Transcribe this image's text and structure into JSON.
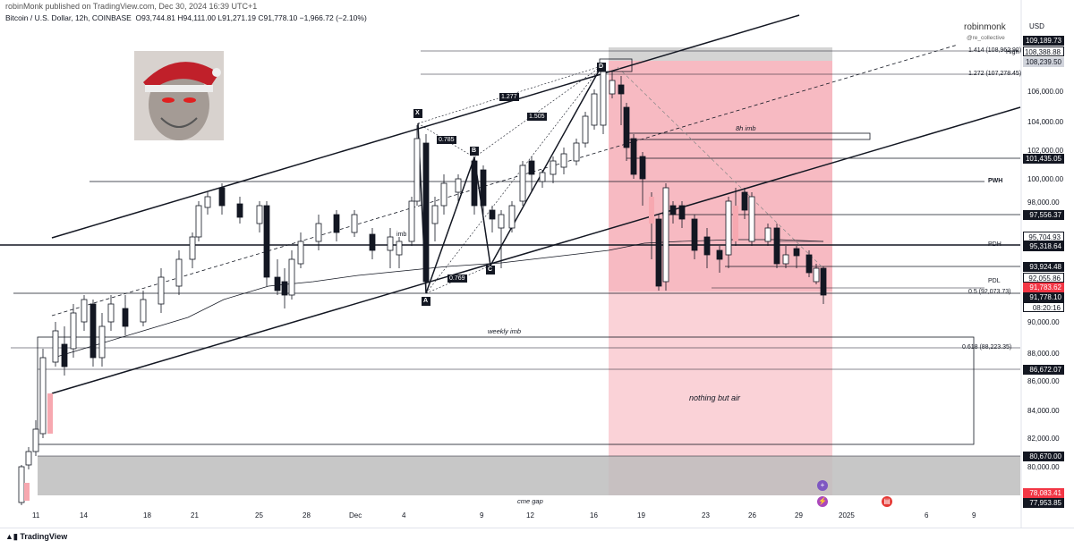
{
  "header": {
    "publisher": "robinMonk published on TradingView.com, Dec 30, 2024 16:39 UTC+1",
    "symbol": "Bitcoin / U.S. Dollar, 12h, COINBASE",
    "open": "O93,744.81",
    "high": "H94,111.00",
    "low": "L91,271.19",
    "close": "C91,778.10",
    "change": "−1,966.72 (−2.10%)"
  },
  "brand": {
    "name": "robinmonk",
    "collective": "@re_collective",
    "currency": "USD"
  },
  "price_axis": [
    "106,000.00",
    "104,000.00",
    "102,000.00",
    "100,000.00",
    "98,000.00",
    "90,000.00",
    "88,000.00",
    "86,000.00",
    "84,000.00",
    "82,000.00",
    "80,000.00"
  ],
  "price_tags": {
    "t109": "109,189.73",
    "t108a": "108,388.88",
    "t108b": "108,239.50",
    "high_label": "High",
    "t101": "101,435.05",
    "t97": "97,556.37",
    "t95a": "95,704.93",
    "t95b": "95,318.64",
    "t93": "93,924.48",
    "t92": "92,055.86",
    "t91a": "91,783.62",
    "t91b": "91,778.10",
    "countdown": "08:20:16",
    "t86": "86,672.07",
    "t80": "80,670.00",
    "t78": "78,083.41",
    "t77": "77,953.85"
  },
  "dates": [
    "11",
    "14",
    "18",
    "21",
    "25",
    "28",
    "Dec",
    "4",
    "9",
    "12",
    "16",
    "19",
    "23",
    "26",
    "29",
    "2025",
    "6",
    "9"
  ],
  "annotations": {
    "fib1414": "1.414 (108,962.92)",
    "fib1272": "1.272 (107,278.45)",
    "imb8h": "8h imb",
    "pwh": "PWH",
    "pdh": "PDH",
    "pdl": "PDL",
    "fib05": "0.5 (92,073.73)",
    "weekly_imb": "weekly imb",
    "fib0618": "0.618 (88,223.35)",
    "nothing": "nothing but air",
    "cme": "cme gap",
    "imb": "imb",
    "pt_x": "X",
    "pt_a": "A",
    "pt_b": "B",
    "pt_c": "C",
    "pt_d": "D",
    "r1": "1.277",
    "r2": "1.505",
    "r3": "0.785",
    "r4": "0.769"
  },
  "footer": {
    "logo": "TradingView"
  },
  "colors": {
    "bear": "#131722",
    "bull": "#ffffff",
    "zone_red": "#f7a8b0",
    "zone_gray": "#c8c8c8",
    "accent": "#f23645"
  }
}
